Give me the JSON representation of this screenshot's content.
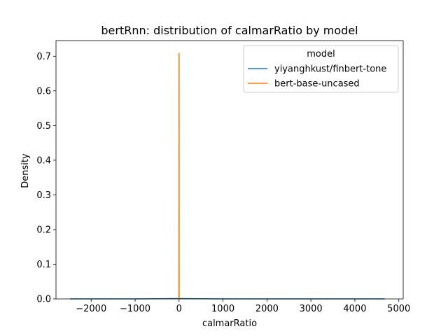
{
  "chart_data": {
    "type": "line",
    "title": "bertRnn: distribution of calmarRatio by model",
    "xlabel": "calmarRatio",
    "ylabel": "Density",
    "xlim": [
      -2800,
      5100
    ],
    "ylim": [
      0,
      0.745
    ],
    "xticks": [
      -2000,
      -1000,
      0,
      1000,
      2000,
      3000,
      4000,
      5000
    ],
    "xtick_labels": [
      "−2000",
      "−1000",
      "0",
      "1000",
      "2000",
      "3000",
      "4000",
      "5000"
    ],
    "yticks": [
      0.0,
      0.1,
      0.2,
      0.3,
      0.4,
      0.5,
      0.6,
      0.7
    ],
    "ytick_labels": [
      "0.0",
      "0.1",
      "0.2",
      "0.3",
      "0.4",
      "0.5",
      "0.6",
      "0.7"
    ],
    "legend": {
      "title": "model",
      "placement": "top-right"
    },
    "series": [
      {
        "name": "yiyanghkust/finbert-tone",
        "color": "#1f77b4",
        "x": [
          -2480,
          -1000,
          0,
          1000,
          2000,
          3000,
          4000,
          4680
        ],
        "y": [
          0.0,
          0.0,
          0.001,
          0.0,
          0.0,
          0.0,
          0.0,
          0.0
        ]
      },
      {
        "name": "bert-base-uncased",
        "color": "#ff7f0e",
        "x": [
          -5,
          -3,
          -1,
          0,
          1,
          3,
          5
        ],
        "y": [
          0.0,
          0.0,
          0.69,
          0.71,
          0.69,
          0.0,
          0.0
        ]
      }
    ],
    "grid": false
  }
}
